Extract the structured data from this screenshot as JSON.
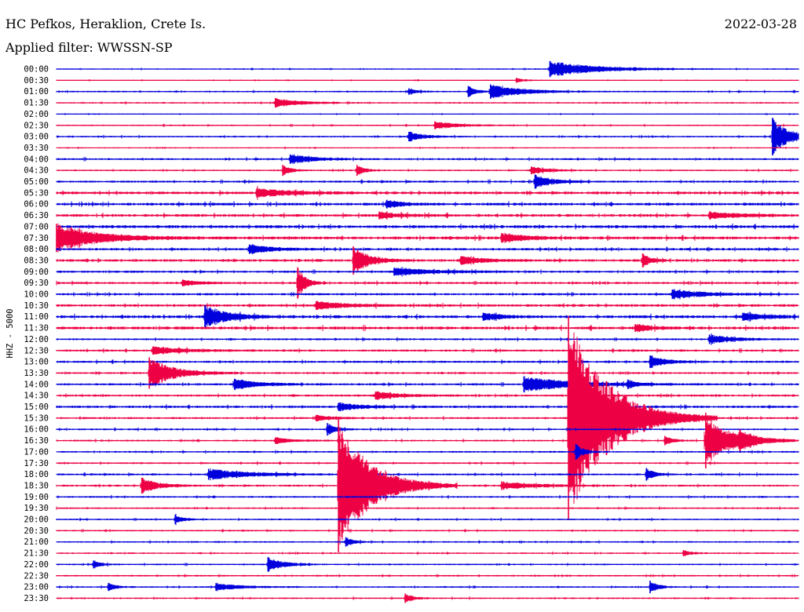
{
  "station": "HC Pefkos, Heraklion, Crete Is.",
  "date": "2022-03-28",
  "filter_label": "Applied filter: WWSSN-SP",
  "colors": {
    "odd": "#0000dd",
    "even": "#ee0044"
  },
  "chart_data": {
    "type": "line",
    "title": "HC Pefkos, Heraklion, Crete Is.",
    "ylabel": "HHZ - 5000",
    "grid": false,
    "rows": [
      "00:00",
      "00:30",
      "01:00",
      "01:30",
      "02:00",
      "02:30",
      "03:00",
      "03:30",
      "04:00",
      "04:30",
      "05:00",
      "05:30",
      "06:00",
      "06:30",
      "07:00",
      "07:30",
      "08:00",
      "08:30",
      "09:00",
      "09:30",
      "10:00",
      "10:30",
      "11:00",
      "11:30",
      "12:00",
      "12:30",
      "13:00",
      "13:30",
      "14:00",
      "14:30",
      "15:00",
      "15:30",
      "16:00",
      "16:30",
      "17:00",
      "17:30",
      "18:00",
      "18:30",
      "19:00",
      "19:30",
      "20:00",
      "20:30",
      "21:00",
      "21:30",
      "22:00",
      "22:30",
      "23:00",
      "23:30"
    ],
    "row_noise": [
      0.6,
      0.5,
      0.8,
      0.8,
      0.5,
      0.7,
      0.8,
      0.6,
      1.0,
      0.8,
      1.1,
      1.4,
      1.4,
      1.4,
      1.5,
      1.5,
      1.2,
      1.3,
      1.1,
      1.1,
      1.1,
      1.3,
      1.5,
      1.5,
      1.0,
      1.1,
      1.1,
      1.0,
      1.1,
      1.1,
      1.2,
      1.0,
      0.9,
      0.9,
      0.9,
      0.9,
      1.0,
      1.0,
      0.9,
      0.8,
      0.8,
      0.8,
      0.8,
      0.8,
      0.8,
      0.8,
      0.8,
      0.8
    ],
    "events": [
      {
        "row": 0,
        "t": 0.665,
        "amp": 10,
        "dur": 0.06
      },
      {
        "row": 1,
        "t": 0.62,
        "amp": 3,
        "dur": 0.01
      },
      {
        "row": 2,
        "t": 0.475,
        "amp": 4,
        "dur": 0.01
      },
      {
        "row": 2,
        "t": 0.555,
        "amp": 7,
        "dur": 0.01
      },
      {
        "row": 2,
        "t": 0.585,
        "amp": 9,
        "dur": 0.04
      },
      {
        "row": 3,
        "t": 0.295,
        "amp": 6,
        "dur": 0.03
      },
      {
        "row": 5,
        "t": 0.51,
        "amp": 5,
        "dur": 0.03
      },
      {
        "row": 6,
        "t": 0.475,
        "amp": 6,
        "dur": 0.02
      },
      {
        "row": 6,
        "t": 0.965,
        "amp": 24,
        "dur": 0.02
      },
      {
        "row": 8,
        "t": 0.315,
        "amp": 6,
        "dur": 0.03
      },
      {
        "row": 9,
        "t": 0.305,
        "amp": 7,
        "dur": 0.01
      },
      {
        "row": 9,
        "t": 0.405,
        "amp": 7,
        "dur": 0.01
      },
      {
        "row": 9,
        "t": 0.64,
        "amp": 5,
        "dur": 0.02
      },
      {
        "row": 10,
        "t": 0.645,
        "amp": 9,
        "dur": 0.02
      },
      {
        "row": 11,
        "t": 0.27,
        "amp": 6,
        "dur": 0.04
      },
      {
        "row": 12,
        "t": 0.445,
        "amp": 5,
        "dur": 0.02
      },
      {
        "row": 13,
        "t": 0.435,
        "amp": 5,
        "dur": 0.02
      },
      {
        "row": 13,
        "t": 0.88,
        "amp": 4,
        "dur": 0.04
      },
      {
        "row": 15,
        "t": 0.0,
        "amp": 18,
        "dur": 0.05
      },
      {
        "row": 15,
        "t": 0.6,
        "amp": 6,
        "dur": 0.03
      },
      {
        "row": 16,
        "t": 0.26,
        "amp": 6,
        "dur": 0.03
      },
      {
        "row": 17,
        "t": 0.4,
        "amp": 18,
        "dur": 0.02
      },
      {
        "row": 17,
        "t": 0.545,
        "amp": 5,
        "dur": 0.03
      },
      {
        "row": 17,
        "t": 0.79,
        "amp": 9,
        "dur": 0.01
      },
      {
        "row": 18,
        "t": 0.455,
        "amp": 5,
        "dur": 0.05
      },
      {
        "row": 19,
        "t": 0.325,
        "amp": 20,
        "dur": 0.01
      },
      {
        "row": 19,
        "t": 0.17,
        "amp": 4,
        "dur": 0.02
      },
      {
        "row": 20,
        "t": 0.83,
        "amp": 6,
        "dur": 0.04
      },
      {
        "row": 21,
        "t": 0.35,
        "amp": 5,
        "dur": 0.04
      },
      {
        "row": 22,
        "t": 0.2,
        "amp": 14,
        "dur": 0.03
      },
      {
        "row": 22,
        "t": 0.575,
        "amp": 5,
        "dur": 0.02
      },
      {
        "row": 22,
        "t": 0.925,
        "amp": 5,
        "dur": 0.03
      },
      {
        "row": 23,
        "t": 0.78,
        "amp": 5,
        "dur": 0.02
      },
      {
        "row": 24,
        "t": 0.88,
        "amp": 6,
        "dur": 0.03
      },
      {
        "row": 25,
        "t": 0.13,
        "amp": 5,
        "dur": 0.04
      },
      {
        "row": 26,
        "t": 0.8,
        "amp": 8,
        "dur": 0.02
      },
      {
        "row": 27,
        "t": 0.125,
        "amp": 20,
        "dur": 0.03
      },
      {
        "row": 28,
        "t": 0.24,
        "amp": 7,
        "dur": 0.03
      },
      {
        "row": 28,
        "t": 0.63,
        "amp": 10,
        "dur": 0.06
      },
      {
        "row": 28,
        "t": 0.77,
        "amp": 6,
        "dur": 0.01
      },
      {
        "row": 29,
        "t": 0.43,
        "amp": 5,
        "dur": 0.03
      },
      {
        "row": 30,
        "t": 0.38,
        "amp": 5,
        "dur": 0.03
      },
      {
        "row": 31,
        "t": 0.69,
        "amp": 130,
        "dur": 0.05
      },
      {
        "row": 31,
        "t": 0.35,
        "amp": 4,
        "dur": 0.02
      },
      {
        "row": 32,
        "t": 0.365,
        "amp": 8,
        "dur": 0.01
      },
      {
        "row": 33,
        "t": 0.295,
        "amp": 4,
        "dur": 0.02
      },
      {
        "row": 33,
        "t": 0.82,
        "amp": 6,
        "dur": 0.01
      },
      {
        "row": 33,
        "t": 0.875,
        "amp": 35,
        "dur": 0.03
      },
      {
        "row": 33,
        "t": 0.92,
        "amp": 8,
        "dur": 0.02
      },
      {
        "row": 34,
        "t": 0.7,
        "amp": 10,
        "dur": 0.01
      },
      {
        "row": 36,
        "t": 0.205,
        "amp": 7,
        "dur": 0.05
      },
      {
        "row": 36,
        "t": 0.795,
        "amp": 8,
        "dur": 0.01
      },
      {
        "row": 37,
        "t": 0.115,
        "amp": 10,
        "dur": 0.02
      },
      {
        "row": 37,
        "t": 0.38,
        "amp": 85,
        "dur": 0.04
      },
      {
        "row": 37,
        "t": 0.6,
        "amp": 5,
        "dur": 0.04
      },
      {
        "row": 40,
        "t": 0.16,
        "amp": 6,
        "dur": 0.01
      },
      {
        "row": 42,
        "t": 0.39,
        "amp": 6,
        "dur": 0.01
      },
      {
        "row": 43,
        "t": 0.845,
        "amp": 4,
        "dur": 0.01
      },
      {
        "row": 44,
        "t": 0.05,
        "amp": 5,
        "dur": 0.01
      },
      {
        "row": 44,
        "t": 0.285,
        "amp": 9,
        "dur": 0.02
      },
      {
        "row": 46,
        "t": 0.07,
        "amp": 5,
        "dur": 0.01
      },
      {
        "row": 46,
        "t": 0.215,
        "amp": 5,
        "dur": 0.03
      },
      {
        "row": 46,
        "t": 0.8,
        "amp": 8,
        "dur": 0.01
      },
      {
        "row": 47,
        "t": 0.47,
        "amp": 6,
        "dur": 0.01
      }
    ]
  }
}
